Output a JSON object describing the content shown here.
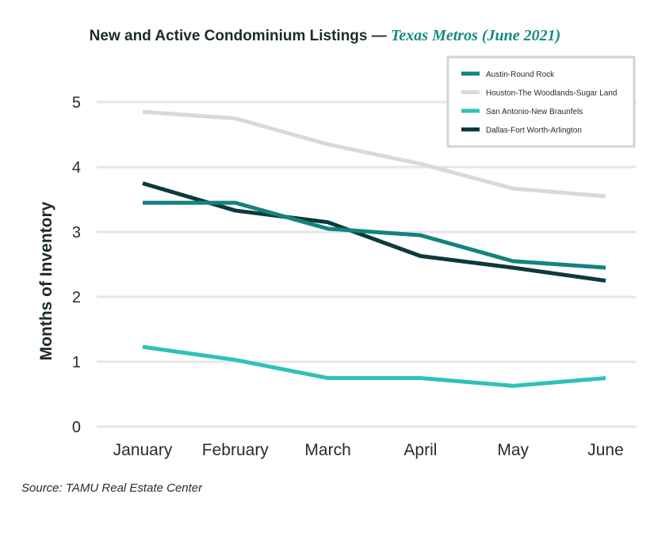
{
  "header": {
    "title_main": "New and Active Condominium Listings —",
    "title_sub": "Texas Metros (June 2021)"
  },
  "source": "Source: TAMU Real Estate Center",
  "chart_data": {
    "type": "line",
    "title": "New and Active Condominium Listings — Texas Metros (June 2021)",
    "xlabel": "",
    "ylabel": "Months of Inventory",
    "categories": [
      "January",
      "February",
      "March",
      "April",
      "May",
      "June"
    ],
    "yticks": [
      "0",
      "1",
      "2",
      "3",
      "4",
      "5"
    ],
    "ylim": [
      0,
      5.5
    ],
    "grid": true,
    "legend_position": "top-right",
    "series": [
      {
        "name": "Austin-Round Rock",
        "color": "#13837e",
        "values": [
          3.45,
          3.45,
          3.05,
          2.95,
          2.55,
          2.45
        ]
      },
      {
        "name": "Houston-The Woodlands-Sugar Land",
        "color": "#d9d9d9",
        "values": [
          4.85,
          4.75,
          4.35,
          4.05,
          3.67,
          3.55
        ]
      },
      {
        "name": "San Antonio-New Braunfels",
        "color": "#2ec2b7",
        "values": [
          1.23,
          1.03,
          0.75,
          0.75,
          0.63,
          0.75
        ]
      },
      {
        "name": "Dallas-Fort Worth-Arlington",
        "color": "#0d3a3b",
        "values": [
          3.75,
          3.33,
          3.15,
          2.63,
          2.45,
          2.25
        ]
      }
    ]
  }
}
